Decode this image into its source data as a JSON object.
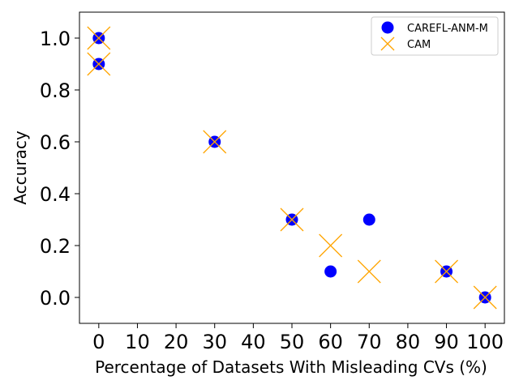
{
  "chart_data": {
    "type": "scatter",
    "title": "",
    "xlabel": "Percentage of Datasets With Misleading CVs (%)",
    "ylabel": "Accuracy",
    "xlim": [
      -5,
      105
    ],
    "ylim": [
      -0.1,
      1.1
    ],
    "xticks": [
      0,
      10,
      20,
      30,
      40,
      50,
      60,
      70,
      80,
      90,
      100
    ],
    "yticks": [
      0.0,
      0.2,
      0.4,
      0.6,
      0.8,
      1.0
    ],
    "xtick_labels": [
      "0",
      "10",
      "20",
      "30",
      "40",
      "50",
      "60",
      "70",
      "80",
      "90",
      "100"
    ],
    "ytick_labels": [
      "0.0",
      "0.2",
      "0.4",
      "0.6",
      "0.8",
      "1.0"
    ],
    "legend_position": "top-right",
    "series": [
      {
        "name": "CAREFL-ANM-M",
        "marker": "circle",
        "color": "#0000ff",
        "points": [
          {
            "x": 0,
            "y": 1.0
          },
          {
            "x": 0,
            "y": 0.9
          },
          {
            "x": 30,
            "y": 0.6
          },
          {
            "x": 50,
            "y": 0.3
          },
          {
            "x": 60,
            "y": 0.1
          },
          {
            "x": 70,
            "y": 0.3
          },
          {
            "x": 90,
            "y": 0.1
          },
          {
            "x": 100,
            "y": 0.0
          }
        ]
      },
      {
        "name": "CAM",
        "marker": "x",
        "color": "#ffa500",
        "points": [
          {
            "x": 0,
            "y": 1.0
          },
          {
            "x": 0,
            "y": 0.9
          },
          {
            "x": 30,
            "y": 0.6
          },
          {
            "x": 50,
            "y": 0.3
          },
          {
            "x": 60,
            "y": 0.2
          },
          {
            "x": 70,
            "y": 0.1
          },
          {
            "x": 90,
            "y": 0.1
          },
          {
            "x": 100,
            "y": 0.0
          }
        ]
      }
    ]
  }
}
